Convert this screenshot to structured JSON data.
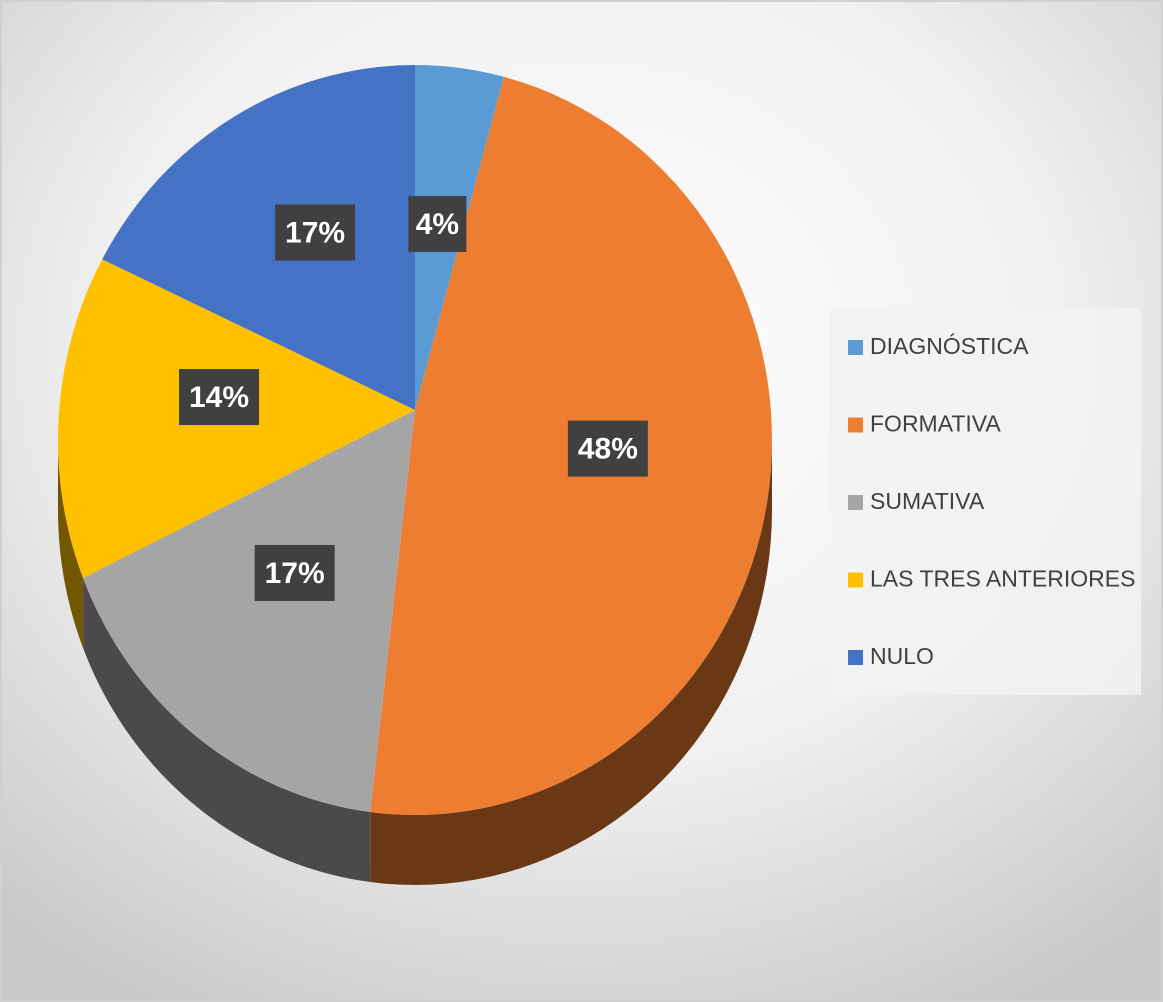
{
  "chart_data": {
    "type": "pie",
    "categories": [
      "DIAGNÓSTICA",
      "FORMATIVA",
      "SUMATIVA",
      "LAS TRES ANTERIORES",
      "NULO"
    ],
    "values": [
      4,
      48,
      17,
      14,
      17
    ],
    "value_labels": [
      "4%",
      "48%",
      "17%",
      "14%",
      "17%"
    ],
    "colors": [
      "#5b9bd5",
      "#ed7d31",
      "#a5a5a5",
      "#ffc000",
      "#4472c4"
    ],
    "legend": "right"
  }
}
